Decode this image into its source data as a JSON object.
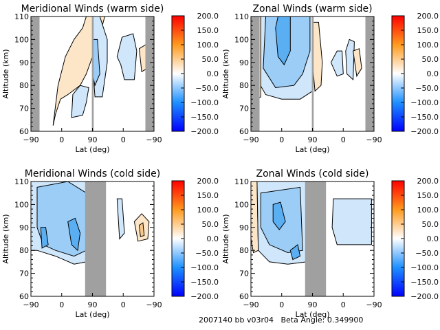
{
  "footer": {
    "label": "2007140 bb v03r04",
    "beta_label": "Beta Angle:",
    "beta_value": "0.349900"
  },
  "colorbar": {
    "ticks": [
      "200.0",
      "150.0",
      "100.0",
      "50.0",
      "0.0",
      "-50.0",
      "-100.0",
      "-150.0",
      "-200.0"
    ],
    "range": [
      -200,
      200
    ],
    "colors": {
      "max": "#ff0000",
      "upper": "#ff9a1e",
      "mid": "#ffffff",
      "lower": "#1e90ff",
      "min": "#0000ff"
    }
  },
  "colors": {
    "gap": "#a0a0a0",
    "warm_light": "#fde6c8",
    "warm_mid": "#f8c98e",
    "cool_light": "#cfe6fb",
    "cool_mid": "#9bcdf6",
    "cool_dark": "#5aaef2",
    "cool_darker": "#3c96ec"
  },
  "chart_data": [
    {
      "type": "heatmap",
      "title": "Meridional Winds (warm side)",
      "xlabel": "Lat (deg)",
      "ylabel": "Altitude (km)",
      "xticks": [
        "-90",
        "0",
        "90",
        "0",
        "-90"
      ],
      "yticks": [
        "110",
        "100",
        "90",
        "80",
        "70",
        "60"
      ],
      "ylim": [
        60,
        110
      ],
      "xlim_desc": "-90 to 90 (ascending orbit) then 90 to -90 (descending orbit)",
      "no_data_regions": [
        [
          -90,
          -70
        ],
        [
          89,
          91
        ],
        [
          -60,
          -90
        ]
      ],
      "features": [
        {
          "sign": "positive",
          "level": "0-50",
          "center_lat": 20,
          "alt_range": [
            74,
            110
          ]
        },
        {
          "sign": "negative",
          "level": "-50-0",
          "center_lat": "85 (desc)",
          "alt_range": [
            75,
            110
          ]
        },
        {
          "sign": "negative",
          "level": "-50-0",
          "center_lat": "0 (desc)",
          "alt_range": [
            84,
            103
          ]
        },
        {
          "sign": "negative",
          "level": "-50-0",
          "center_lat": 65,
          "alt_range": [
            74,
            83
          ]
        },
        {
          "sign": "positive",
          "level": "0-50",
          "center_lat": "-50 (desc)",
          "alt_range": [
            86,
            98
          ]
        }
      ]
    },
    {
      "type": "heatmap",
      "title": "Zonal Winds (warm side)",
      "xlabel": "Lat (deg)",
      "ylabel": "Altitude (km)",
      "xticks": [
        "-90",
        "0",
        "90",
        "0",
        "-90"
      ],
      "yticks": [
        "110",
        "100",
        "90",
        "80",
        "70",
        "60"
      ],
      "ylim": [
        60,
        110
      ],
      "no_data_regions": [
        [
          -90,
          -70
        ],
        [
          89,
          91
        ],
        [
          -60,
          -90
        ]
      ],
      "features": [
        {
          "sign": "negative",
          "level": "-100 to -50",
          "center_lat": 0,
          "alt_range": [
            78,
            110
          ]
        },
        {
          "sign": "positive",
          "level": "0-50",
          "center_lat": "85 (desc)",
          "alt_range": [
            82,
            110
          ]
        },
        {
          "sign": "negative",
          "level": "-50-0",
          "center_lat": "-20 (desc)",
          "alt_range": [
            86,
            99
          ]
        },
        {
          "sign": "positive",
          "level": "0-50",
          "center_lat": "-40 (desc)",
          "alt_range": [
            88,
            96
          ]
        }
      ]
    },
    {
      "type": "heatmap",
      "title": "Meridional Winds (cold side)",
      "xlabel": "Lat (deg)",
      "ylabel": "Altitude (km)",
      "xticks": [
        "-90",
        "0",
        "90",
        "0",
        "-90"
      ],
      "yticks": [
        "110",
        "100",
        "90",
        "80",
        "70",
        "60"
      ],
      "ylim": [
        60,
        110
      ],
      "no_data_regions": [
        [
          60,
          120
        ]
      ],
      "features": [
        {
          "sign": "negative",
          "level": "-100 to -50",
          "center_lat": -10,
          "alt_range": [
            75,
            110
          ]
        },
        {
          "sign": "negative",
          "level": "-50-0",
          "center_lat": "20 (desc)",
          "alt_range": [
            87,
            103
          ]
        },
        {
          "sign": "positive",
          "level": "0-50",
          "center_lat": "-60 (desc)",
          "alt_range": [
            86,
            97
          ]
        }
      ]
    },
    {
      "type": "heatmap",
      "title": "Zonal Winds (cold side)",
      "xlabel": "Lat (deg)",
      "ylabel": "Altitude (km)",
      "xticks": [
        "-90",
        "0",
        "90",
        "0",
        "-90"
      ],
      "yticks": [
        "110",
        "100",
        "90",
        "80",
        "70",
        "60"
      ],
      "ylim": [
        60,
        110
      ],
      "no_data_regions": [
        [
          60,
          120
        ]
      ],
      "features": [
        {
          "sign": "negative",
          "level": "-100 to -50",
          "center_lat": 0,
          "alt_range": [
            75,
            110
          ]
        },
        {
          "sign": "positive",
          "level": "0-50",
          "center_lat": -85,
          "alt_range": [
            83,
            110
          ]
        },
        {
          "sign": "negative",
          "level": "-50-0",
          "center_lat": "-40 (desc)",
          "alt_range": [
            86,
            102
          ]
        }
      ]
    }
  ]
}
